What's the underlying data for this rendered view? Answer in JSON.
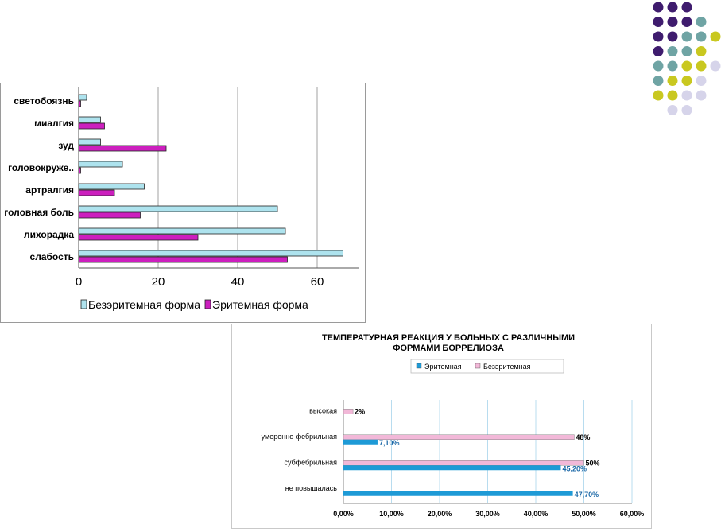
{
  "decoration": {
    "dot_colors": {
      "purple": "#3f1c6e",
      "teal": "#6fa4a4",
      "yellow": "#c9c820",
      "lavender": "#d6d4ea"
    },
    "dot_rows": [
      [
        "purple",
        "purple",
        "purple"
      ],
      [
        "purple",
        "purple",
        "purple",
        "teal"
      ],
      [
        "purple",
        "purple",
        "teal",
        "teal",
        "yellow"
      ],
      [
        "purple",
        "teal",
        "teal",
        "yellow"
      ],
      [
        "teal",
        "teal",
        "yellow",
        "yellow",
        "lavender"
      ],
      [
        "teal",
        "yellow",
        "yellow",
        "lavender"
      ],
      [
        "yellow",
        "yellow",
        "lavender",
        "lavender"
      ],
      [
        "lavender",
        "lavender"
      ]
    ]
  },
  "chart_data": [
    {
      "type": "bar",
      "orientation": "horizontal",
      "title": "",
      "categories": [
        "светобоязнь",
        "миалгия",
        "зуд",
        "головокруже..",
        "артралгия",
        "головная боль",
        "лихорадка",
        "слабость"
      ],
      "series": [
        {
          "name": "Безэритемная форма",
          "color": "#aee3ee",
          "values": [
            2,
            5.5,
            5.5,
            11,
            16.5,
            50,
            52,
            66.5
          ]
        },
        {
          "name": "Эритемная форма",
          "color": "#cc1fbe",
          "values": [
            0.5,
            6.5,
            22,
            0.5,
            9,
            15.5,
            30,
            52.5
          ]
        }
      ],
      "xlim": [
        0,
        70
      ],
      "xticks": [
        "0",
        "20",
        "40",
        "60"
      ],
      "grid": true,
      "legend": "bottom"
    },
    {
      "type": "bar",
      "orientation": "horizontal",
      "title": "ТЕМПЕРАТУРНАЯ РЕАКЦИЯ У БОЛЬНЫХ С РАЗЛИЧНЫМИ ФОРМАМИ БОРРЕЛИОЗА",
      "title_lines": [
        "ТЕМПЕРАТУРНАЯ РЕАКЦИЯ У БОЛЬНЫХ С РАЗЛИЧНЫМИ",
        "ФОРМАМИ БОРРЕЛИОЗА"
      ],
      "categories": [
        "высокая",
        "умеренно фебрильная",
        "субфебрильная",
        "не повышалась"
      ],
      "series": [
        {
          "name": "Эритемная",
          "color": "#1e9ad6",
          "values": [
            0,
            7.1,
            45.2,
            47.7
          ],
          "labels": [
            "",
            "7,10%",
            "45,20%",
            "47,70%"
          ]
        },
        {
          "name": "Безэритемная",
          "color": "#f2b8d8",
          "values": [
            2,
            48,
            50,
            0
          ],
          "labels": [
            "2%",
            "48%",
            "50%",
            ""
          ]
        }
      ],
      "xlim": [
        0,
        60
      ],
      "xticks": [
        "0,00%",
        "10,00%",
        "20,00%",
        "30,00%",
        "40,00%",
        "50,00%",
        "60,00%"
      ],
      "grid": true,
      "legend": "top"
    }
  ]
}
